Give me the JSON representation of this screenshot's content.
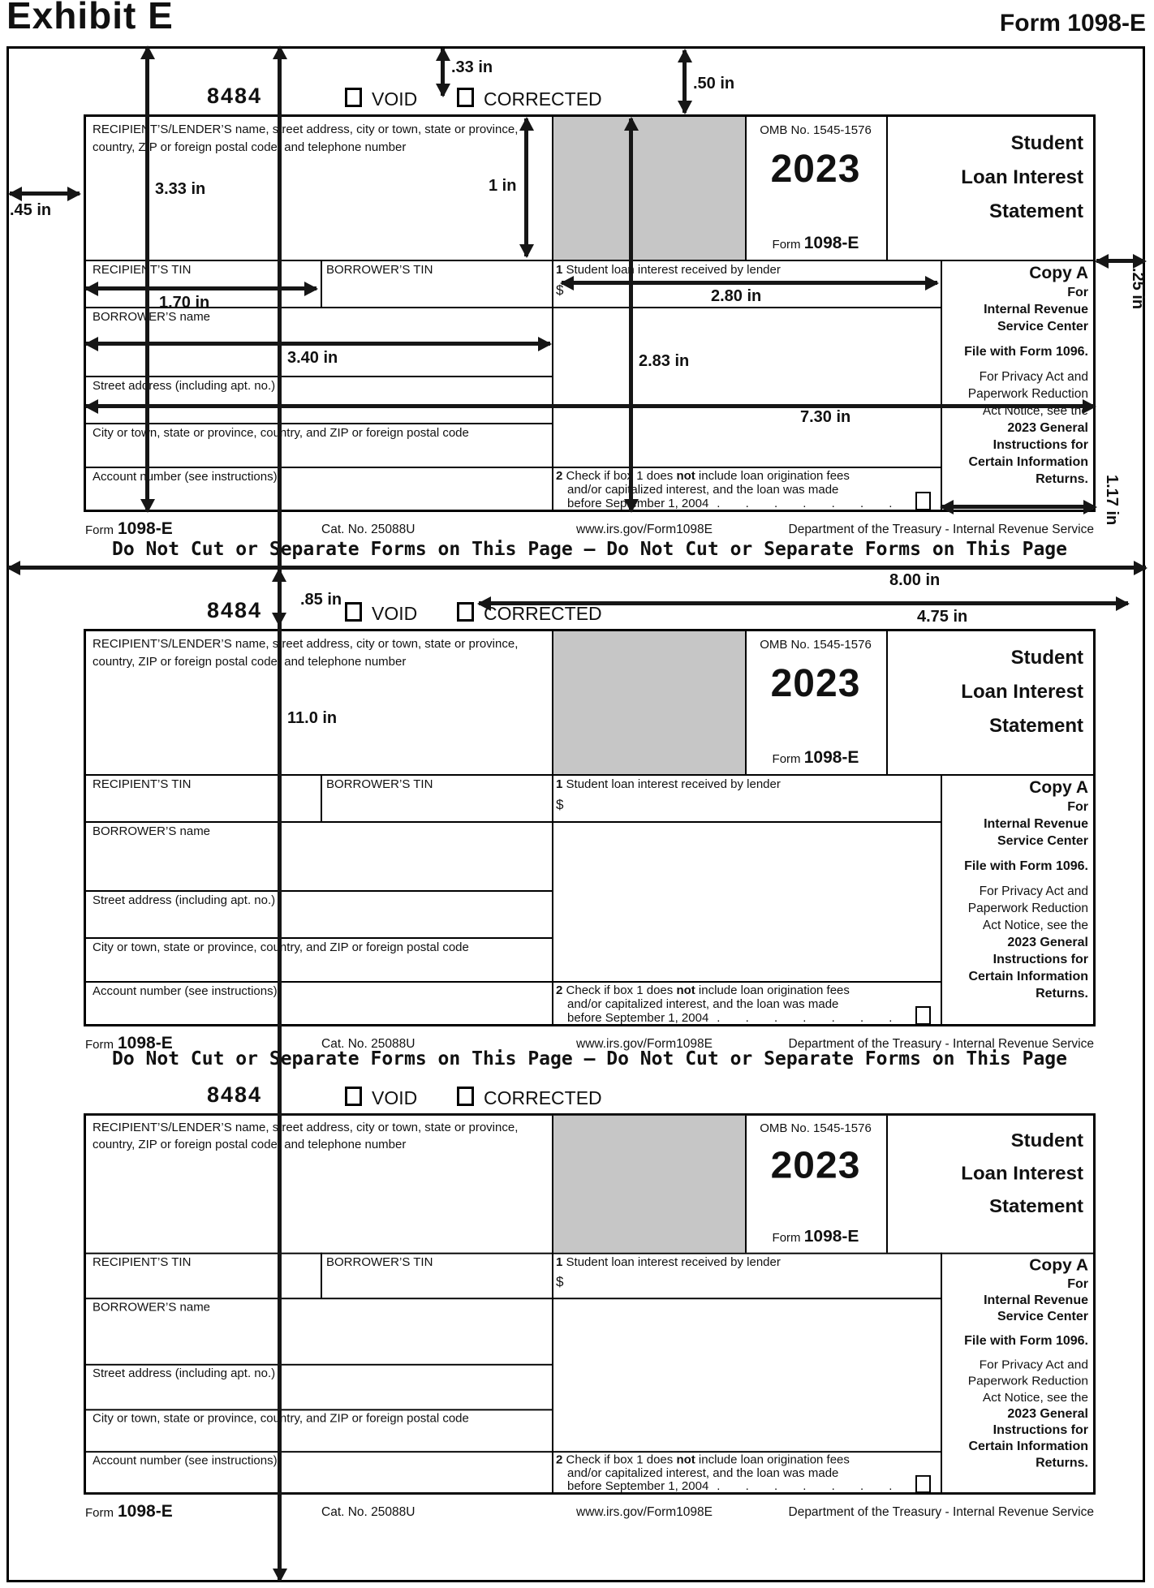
{
  "header": {
    "exhibit": "Exhibit E",
    "form_ref": "Form 1098-E"
  },
  "divider": "Do Not Cut or Separate Forms on This Page — Do Not Cut or Separate Forms on This Page",
  "form": {
    "code": "8484",
    "void_label": "VOID",
    "corrected_label": "CORRECTED",
    "recipient_info": "RECIPIENT’S/LENDER’S name, street address, city or town, state or province, country, ZIP or foreign postal code, and telephone number",
    "omb": "OMB No. 1545-1576",
    "year": "2023",
    "form_word": "Form",
    "form_number": "1098-E",
    "title_l1": "Student",
    "title_l2": "Loan Interest",
    "title_l3": "Statement",
    "recipient_tin": "RECIPIENT’S TIN",
    "borrower_tin": "BORROWER’S TIN",
    "box1_num": "1",
    "box1_label": "Student loan interest received by lender",
    "dollar": "$",
    "borrower_name": "BORROWER’S name",
    "street": "Street address (including apt. no.)",
    "city": "City or town, state or province, country, and ZIP or foreign postal code",
    "account": "Account number (see instructions)",
    "box2_num": "2",
    "box2_l1a": "Check if box 1 does ",
    "box2_not": "not",
    "box2_l1b": " include loan origination fees",
    "box2_l2": "and/or capitalized interest, and the loan was made",
    "box2_l3": "before September 1, 2004",
    "box2_dots": ". . . . . . . .",
    "copy_a": "Copy A",
    "copy_for": "For",
    "copy_irs1": "Internal Revenue",
    "copy_irs2": "Service Center",
    "copy_file": "File with Form 1096.",
    "copy_p1": "For Privacy Act and",
    "copy_p2": "Paperwork Reduction",
    "copy_p3": "Act Notice, see the",
    "copy_p4": "2023 General",
    "copy_p5": "Instructions for",
    "copy_p6": "Certain Information",
    "copy_p7": "Returns.",
    "footer_form_word": "Form",
    "footer_form_number": "1098-E",
    "cat_no": "Cat. No. 25088U",
    "url": "www.irs.gov/Form1098E",
    "treasury": "Department of the Treasury - Internal Revenue Service"
  },
  "measurements": {
    "m033": ".33 in",
    "m050": ".50 in",
    "m045": ".45 in",
    "m333": "3.33 in",
    "m100": "1 in",
    "m170": "1.70 in",
    "m280": "2.80 in",
    "m283": "2.83 in",
    "m340": "3.40 in",
    "m730": "7.30 in",
    "m025": ".25 in",
    "m117": "1.17 in",
    "m085": ".85 in",
    "m800": "8.00 in",
    "m475": "4.75 in",
    "m1100": "11.0 in"
  }
}
